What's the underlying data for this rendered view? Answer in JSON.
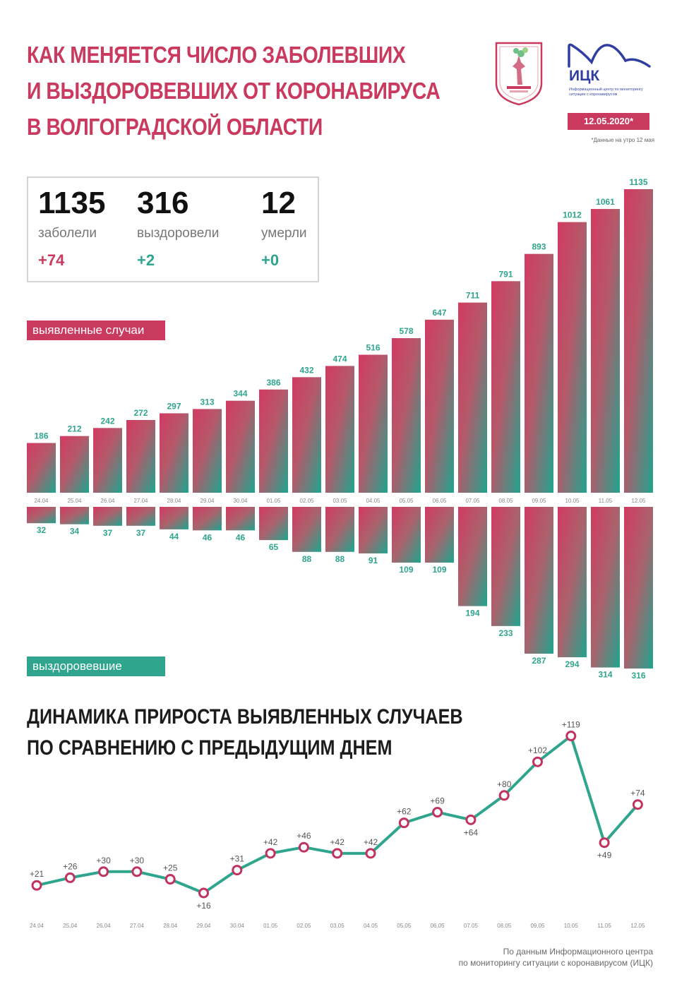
{
  "header": {
    "title_lines": [
      "КАК МЕНЯЕТСЯ ЧИСЛО ЗАБОЛЕВШИХ",
      "И ВЫЗДОРОВЕВШИХ ОТ КОРОНАВИРУСА",
      "В ВОЛГОГРАДСКОЙ ОБЛАСТИ"
    ],
    "logo_name": "ИЦК",
    "logo_sub": "Информационный центр по мониторингу ситуации с коронавирусом",
    "date": "12.05.2020*",
    "note": "*Данные на утро 12 мая"
  },
  "summary": {
    "items": [
      {
        "value": "1135",
        "label": "заболели",
        "delta": "+74"
      },
      {
        "value": "316",
        "label": "выздоровели",
        "delta": "+2"
      },
      {
        "value": "12",
        "label": "умерли",
        "delta": "+0"
      }
    ]
  },
  "labels": {
    "cases_tag": "выявленные случаи",
    "recovered_tag": "выздоровевшие",
    "growth_title_lines": [
      "ДИНАМИКА ПРИРОСТА ВЫЯВЛЕННЫХ СЛУЧАЕВ",
      "ПО СРАВНЕНИЮ С ПРЕДЫДУЩИМ ДНЕМ"
    ]
  },
  "colors": {
    "accent": "#c93a5e",
    "teal": "#2fa58e",
    "growth_delta": "#c0345f"
  },
  "chart_data": [
    {
      "type": "bar",
      "categories": [
        "24.04",
        "25.04",
        "26.04",
        "27.04",
        "28.04",
        "29.04",
        "30.04",
        "01.05",
        "02.05",
        "03.05",
        "04.05",
        "05.05",
        "06.05",
        "07.05",
        "08.05",
        "09.05",
        "10.05",
        "11.05",
        "12.05"
      ],
      "series": [
        {
          "name": "выявленные случаи",
          "values": [
            186,
            212,
            242,
            272,
            297,
            313,
            344,
            386,
            432,
            474,
            516,
            578,
            647,
            711,
            791,
            893,
            1012,
            1061,
            1135
          ]
        },
        {
          "name": "выздоровевшие",
          "values": [
            32,
            34,
            37,
            37,
            44,
            46,
            46,
            65,
            88,
            88,
            91,
            109,
            109,
            194,
            233,
            287,
            294,
            314,
            316
          ]
        }
      ]
    },
    {
      "type": "line",
      "title": "ДИНАМИКА ПРИРОСТА ВЫЯВЛЕННЫХ СЛУЧАЕВ ПО СРАВНЕНИЮ С ПРЕДЫДУЩИМ ДНЕМ",
      "x": [
        "24.04",
        "25.04",
        "26.04",
        "27.04",
        "28.04",
        "29.04",
        "30.04",
        "01.05",
        "02.05",
        "03.05",
        "04.05",
        "05.05",
        "06.05",
        "07.05",
        "08.05",
        "09.05",
        "10.05",
        "11.05",
        "12.05"
      ],
      "values": [
        21,
        26,
        30,
        30,
        25,
        16,
        31,
        42,
        46,
        42,
        42,
        62,
        69,
        64,
        80,
        102,
        119,
        49,
        74
      ],
      "labels": [
        "+21",
        "+26",
        "+30",
        "+30",
        "+25",
        "+16",
        "+31",
        "+42",
        "+46",
        "+42",
        "+42",
        "+62",
        "+69",
        "+64",
        "+80",
        "+102",
        "+119",
        "+49",
        "+74"
      ]
    }
  ],
  "footer": {
    "source_lines": [
      "По данным Информационного центра",
      "по мониторингу ситуации с коронавирусом (ИЦК)"
    ]
  }
}
